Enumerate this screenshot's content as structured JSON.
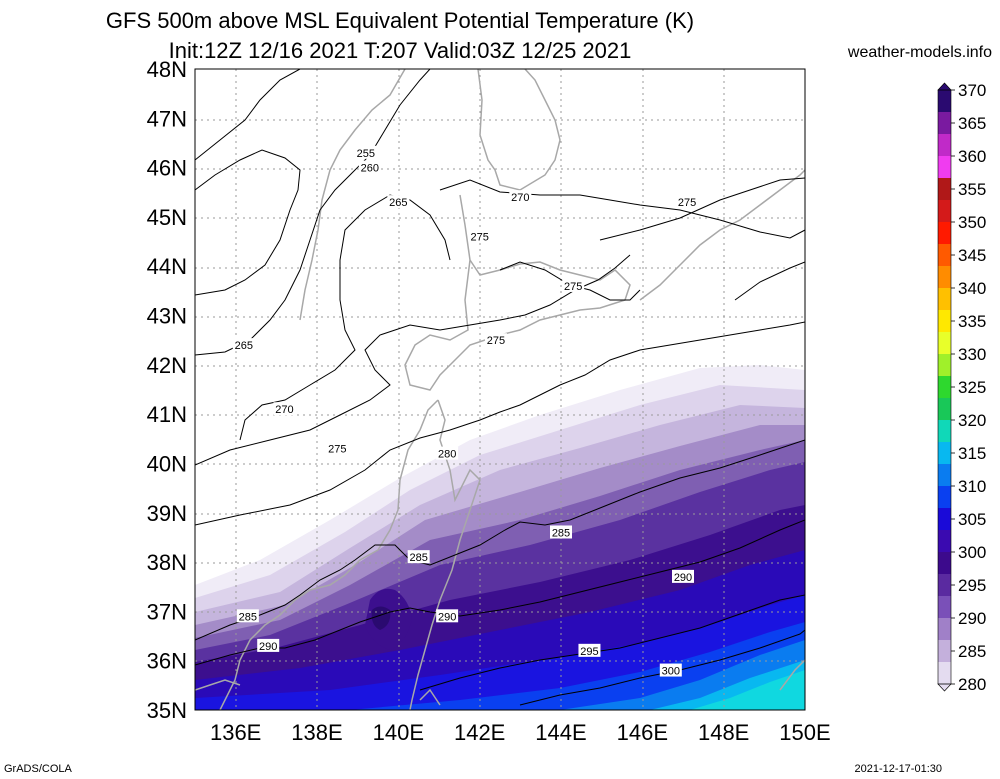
{
  "title": {
    "line1": "GFS 500m above MSL Equivalent Potential Temperature (K)",
    "line2": "Init:12Z 12/16 2021 T:207 Valid:03Z 12/25 2021"
  },
  "site": "weather-models.info",
  "footer": {
    "left": "GrADS/COLA",
    "right": "2021-12-17-01:30"
  },
  "map": {
    "lat_labels": [
      "48N",
      "47N",
      "46N",
      "45N",
      "44N",
      "43N",
      "42N",
      "41N",
      "40N",
      "39N",
      "38N",
      "37N",
      "36N",
      "35N"
    ],
    "lon_labels": [
      "136E",
      "138E",
      "140E",
      "142E",
      "144E",
      "146E",
      "148E",
      "150E"
    ],
    "contour_labels": [
      {
        "text": "255",
        "lon": 139.2,
        "lat": 46.3
      },
      {
        "text": "260",
        "lon": 139.3,
        "lat": 46.0
      },
      {
        "text": "265",
        "lon": 140.0,
        "lat": 45.3
      },
      {
        "text": "275",
        "lon": 142.0,
        "lat": 44.6
      },
      {
        "text": "270",
        "lon": 143.0,
        "lat": 45.4
      },
      {
        "text": "275",
        "lon": 147.1,
        "lat": 45.3
      },
      {
        "text": "275",
        "lon": 144.3,
        "lat": 43.6
      },
      {
        "text": "275",
        "lon": 142.4,
        "lat": 42.5
      },
      {
        "text": "265",
        "lon": 136.2,
        "lat": 42.4
      },
      {
        "text": "270",
        "lon": 137.2,
        "lat": 41.1
      },
      {
        "text": "275",
        "lon": 138.5,
        "lat": 40.3
      },
      {
        "text": "280",
        "lon": 141.2,
        "lat": 40.2
      },
      {
        "text": "285",
        "lon": 144.0,
        "lat": 38.6
      },
      {
        "text": "285",
        "lon": 140.5,
        "lat": 38.1
      },
      {
        "text": "290",
        "lon": 147.0,
        "lat": 37.7
      },
      {
        "text": "285",
        "lon": 136.3,
        "lat": 36.9
      },
      {
        "text": "290",
        "lon": 141.2,
        "lat": 36.9
      },
      {
        "text": "290",
        "lon": 136.8,
        "lat": 36.3
      },
      {
        "text": "295",
        "lon": 144.7,
        "lat": 36.2
      },
      {
        "text": "300",
        "lon": 146.7,
        "lat": 35.8
      }
    ]
  },
  "colorbar": {
    "labels": [
      "370",
      "365",
      "360",
      "355",
      "350",
      "345",
      "340",
      "335",
      "330",
      "325",
      "320",
      "315",
      "310",
      "305",
      "300",
      "295",
      "290",
      "285",
      "280"
    ],
    "colors": [
      "#2a0a70",
      "#7a1aa0",
      "#c02ac8",
      "#f03cf0",
      "#b01818",
      "#d41a1a",
      "#ff1a00",
      "#ff5a00",
      "#ff8c00",
      "#ffc000",
      "#ffe800",
      "#e8ff2a",
      "#a0f02a",
      "#2ed82e",
      "#19c858",
      "#10d8b8",
      "#08b8f0",
      "#0a7cf0",
      "#0a40f0",
      "#1a0ad8",
      "#3a0ab0",
      "#3c0a8c",
      "#5a2aa0",
      "#7a50b8",
      "#a080c8",
      "#c4b0dc",
      "#e4dcf0"
    ]
  }
}
